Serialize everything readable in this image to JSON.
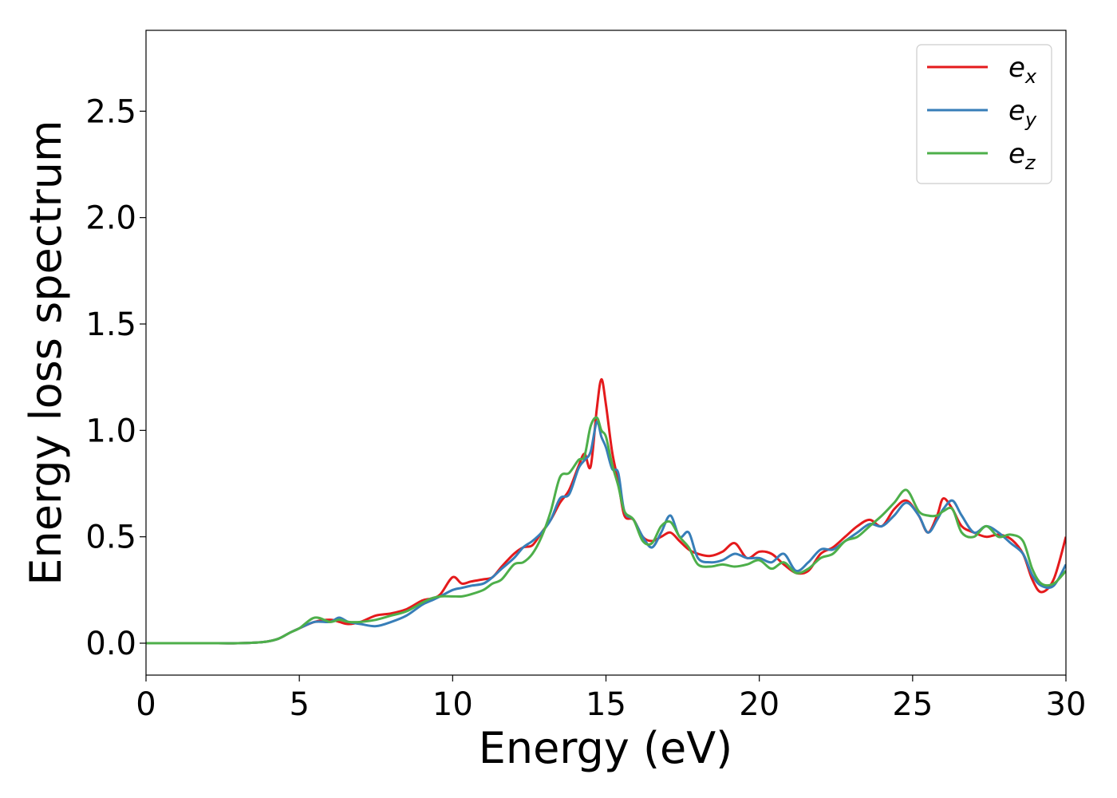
{
  "chart_data": {
    "type": "line",
    "title": "",
    "xlabel": "Energy (eV)",
    "ylabel": "Energy loss spectrum",
    "xlim": [
      0,
      30
    ],
    "ylim": [
      -0.15,
      2.88
    ],
    "xticks": [
      0,
      5,
      10,
      15,
      20,
      25,
      30
    ],
    "xtick_labels": [
      "0",
      "5",
      "10",
      "15",
      "20",
      "25",
      "30"
    ],
    "yticks": [
      0.0,
      0.5,
      1.0,
      1.5,
      2.0,
      2.5
    ],
    "ytick_labels": [
      "0.0",
      "0.5",
      "1.0",
      "1.5",
      "2.0",
      "2.5"
    ],
    "grid": false,
    "legend_position": "top-right",
    "legend": [
      {
        "base": "e",
        "sub": "x"
      },
      {
        "base": "e",
        "sub": "y"
      },
      {
        "base": "e",
        "sub": "z"
      }
    ],
    "series": [
      {
        "name": "e_x",
        "color": "#e41a1c",
        "points": [
          [
            0,
            0.0
          ],
          [
            1,
            0.0
          ],
          [
            2,
            0.0
          ],
          [
            3,
            0.0
          ],
          [
            3.8,
            0.005
          ],
          [
            4.3,
            0.02
          ],
          [
            4.7,
            0.05
          ],
          [
            5.0,
            0.07
          ],
          [
            5.5,
            0.1
          ],
          [
            6.0,
            0.11
          ],
          [
            6.3,
            0.1
          ],
          [
            6.6,
            0.09
          ],
          [
            7.0,
            0.1
          ],
          [
            7.5,
            0.13
          ],
          [
            8.0,
            0.14
          ],
          [
            8.5,
            0.16
          ],
          [
            9.0,
            0.2
          ],
          [
            9.3,
            0.21
          ],
          [
            9.6,
            0.23
          ],
          [
            10.0,
            0.31
          ],
          [
            10.3,
            0.28
          ],
          [
            10.6,
            0.29
          ],
          [
            11.0,
            0.3
          ],
          [
            11.3,
            0.31
          ],
          [
            11.6,
            0.36
          ],
          [
            12.0,
            0.42
          ],
          [
            12.3,
            0.45
          ],
          [
            12.6,
            0.46
          ],
          [
            12.9,
            0.52
          ],
          [
            13.2,
            0.58
          ],
          [
            13.5,
            0.66
          ],
          [
            13.8,
            0.72
          ],
          [
            14.1,
            0.83
          ],
          [
            14.3,
            0.89
          ],
          [
            14.5,
            0.83
          ],
          [
            14.7,
            1.1
          ],
          [
            14.85,
            1.24
          ],
          [
            15.0,
            1.12
          ],
          [
            15.2,
            0.9
          ],
          [
            15.4,
            0.76
          ],
          [
            15.6,
            0.6
          ],
          [
            15.9,
            0.58
          ],
          [
            16.2,
            0.5
          ],
          [
            16.5,
            0.48
          ],
          [
            16.8,
            0.5
          ],
          [
            17.1,
            0.52
          ],
          [
            17.4,
            0.48
          ],
          [
            17.7,
            0.44
          ],
          [
            18.0,
            0.42
          ],
          [
            18.4,
            0.41
          ],
          [
            18.8,
            0.43
          ],
          [
            19.2,
            0.47
          ],
          [
            19.6,
            0.4
          ],
          [
            20.0,
            0.43
          ],
          [
            20.4,
            0.42
          ],
          [
            20.8,
            0.37
          ],
          [
            21.2,
            0.33
          ],
          [
            21.6,
            0.34
          ],
          [
            22.0,
            0.42
          ],
          [
            22.4,
            0.45
          ],
          [
            22.8,
            0.5
          ],
          [
            23.2,
            0.55
          ],
          [
            23.6,
            0.58
          ],
          [
            24.0,
            0.55
          ],
          [
            24.4,
            0.63
          ],
          [
            24.8,
            0.67
          ],
          [
            25.2,
            0.6
          ],
          [
            25.5,
            0.52
          ],
          [
            25.8,
            0.6
          ],
          [
            26.0,
            0.68
          ],
          [
            26.3,
            0.63
          ],
          [
            26.6,
            0.55
          ],
          [
            27.0,
            0.52
          ],
          [
            27.4,
            0.5
          ],
          [
            27.8,
            0.51
          ],
          [
            28.2,
            0.49
          ],
          [
            28.6,
            0.42
          ],
          [
            28.9,
            0.3
          ],
          [
            29.2,
            0.24
          ],
          [
            29.6,
            0.3
          ],
          [
            30.0,
            0.5
          ]
        ]
      },
      {
        "name": "e_y",
        "color": "#377eb8",
        "points": [
          [
            0,
            0.0
          ],
          [
            1,
            0.0
          ],
          [
            2,
            0.0
          ],
          [
            3,
            0.0
          ],
          [
            3.8,
            0.005
          ],
          [
            4.3,
            0.02
          ],
          [
            4.7,
            0.05
          ],
          [
            5.0,
            0.07
          ],
          [
            5.5,
            0.1
          ],
          [
            6.0,
            0.1
          ],
          [
            6.3,
            0.12
          ],
          [
            6.6,
            0.1
          ],
          [
            7.0,
            0.09
          ],
          [
            7.5,
            0.08
          ],
          [
            8.0,
            0.1
          ],
          [
            8.5,
            0.13
          ],
          [
            9.0,
            0.18
          ],
          [
            9.3,
            0.2
          ],
          [
            9.6,
            0.22
          ],
          [
            10.0,
            0.25
          ],
          [
            10.3,
            0.26
          ],
          [
            10.6,
            0.27
          ],
          [
            11.0,
            0.28
          ],
          [
            11.3,
            0.31
          ],
          [
            11.6,
            0.35
          ],
          [
            12.0,
            0.4
          ],
          [
            12.3,
            0.45
          ],
          [
            12.6,
            0.48
          ],
          [
            12.9,
            0.52
          ],
          [
            13.2,
            0.58
          ],
          [
            13.5,
            0.68
          ],
          [
            13.8,
            0.7
          ],
          [
            14.1,
            0.82
          ],
          [
            14.3,
            0.86
          ],
          [
            14.5,
            0.9
          ],
          [
            14.7,
            1.04
          ],
          [
            14.85,
            0.97
          ],
          [
            15.0,
            0.92
          ],
          [
            15.2,
            0.82
          ],
          [
            15.4,
            0.8
          ],
          [
            15.6,
            0.62
          ],
          [
            15.9,
            0.58
          ],
          [
            16.2,
            0.5
          ],
          [
            16.5,
            0.45
          ],
          [
            16.8,
            0.52
          ],
          [
            17.1,
            0.6
          ],
          [
            17.4,
            0.5
          ],
          [
            17.7,
            0.52
          ],
          [
            18.0,
            0.4
          ],
          [
            18.4,
            0.38
          ],
          [
            18.8,
            0.39
          ],
          [
            19.2,
            0.42
          ],
          [
            19.6,
            0.4
          ],
          [
            20.0,
            0.4
          ],
          [
            20.4,
            0.38
          ],
          [
            20.8,
            0.42
          ],
          [
            21.2,
            0.34
          ],
          [
            21.6,
            0.38
          ],
          [
            22.0,
            0.44
          ],
          [
            22.4,
            0.44
          ],
          [
            22.8,
            0.48
          ],
          [
            23.2,
            0.52
          ],
          [
            23.6,
            0.56
          ],
          [
            24.0,
            0.55
          ],
          [
            24.4,
            0.6
          ],
          [
            24.8,
            0.66
          ],
          [
            25.2,
            0.6
          ],
          [
            25.5,
            0.52
          ],
          [
            25.8,
            0.58
          ],
          [
            26.0,
            0.63
          ],
          [
            26.3,
            0.67
          ],
          [
            26.6,
            0.6
          ],
          [
            27.0,
            0.52
          ],
          [
            27.4,
            0.55
          ],
          [
            27.8,
            0.52
          ],
          [
            28.2,
            0.47
          ],
          [
            28.6,
            0.42
          ],
          [
            28.9,
            0.32
          ],
          [
            29.2,
            0.27
          ],
          [
            29.6,
            0.27
          ],
          [
            30.0,
            0.37
          ]
        ]
      },
      {
        "name": "e_z",
        "color": "#4daf4a",
        "points": [
          [
            0,
            0.0
          ],
          [
            1,
            0.0
          ],
          [
            2,
            0.0
          ],
          [
            3,
            0.0
          ],
          [
            3.8,
            0.005
          ],
          [
            4.3,
            0.02
          ],
          [
            4.7,
            0.05
          ],
          [
            5.0,
            0.07
          ],
          [
            5.5,
            0.12
          ],
          [
            6.0,
            0.1
          ],
          [
            6.3,
            0.11
          ],
          [
            6.6,
            0.1
          ],
          [
            7.0,
            0.1
          ],
          [
            7.5,
            0.11
          ],
          [
            8.0,
            0.13
          ],
          [
            8.5,
            0.15
          ],
          [
            9.0,
            0.19
          ],
          [
            9.3,
            0.21
          ],
          [
            9.6,
            0.22
          ],
          [
            10.0,
            0.22
          ],
          [
            10.3,
            0.22
          ],
          [
            10.6,
            0.23
          ],
          [
            11.0,
            0.25
          ],
          [
            11.3,
            0.28
          ],
          [
            11.6,
            0.3
          ],
          [
            12.0,
            0.37
          ],
          [
            12.3,
            0.38
          ],
          [
            12.6,
            0.42
          ],
          [
            12.9,
            0.5
          ],
          [
            13.2,
            0.62
          ],
          [
            13.5,
            0.78
          ],
          [
            13.8,
            0.8
          ],
          [
            14.1,
            0.86
          ],
          [
            14.3,
            0.88
          ],
          [
            14.5,
            1.02
          ],
          [
            14.7,
            1.06
          ],
          [
            14.85,
            1.0
          ],
          [
            15.0,
            0.97
          ],
          [
            15.2,
            0.84
          ],
          [
            15.4,
            0.74
          ],
          [
            15.6,
            0.62
          ],
          [
            15.9,
            0.58
          ],
          [
            16.2,
            0.48
          ],
          [
            16.5,
            0.47
          ],
          [
            16.8,
            0.55
          ],
          [
            17.1,
            0.57
          ],
          [
            17.4,
            0.5
          ],
          [
            17.7,
            0.45
          ],
          [
            18.0,
            0.37
          ],
          [
            18.4,
            0.36
          ],
          [
            18.8,
            0.37
          ],
          [
            19.2,
            0.36
          ],
          [
            19.6,
            0.37
          ],
          [
            20.0,
            0.39
          ],
          [
            20.4,
            0.35
          ],
          [
            20.8,
            0.38
          ],
          [
            21.2,
            0.33
          ],
          [
            21.6,
            0.35
          ],
          [
            22.0,
            0.4
          ],
          [
            22.4,
            0.42
          ],
          [
            22.8,
            0.48
          ],
          [
            23.2,
            0.5
          ],
          [
            23.6,
            0.55
          ],
          [
            24.0,
            0.6
          ],
          [
            24.4,
            0.66
          ],
          [
            24.8,
            0.72
          ],
          [
            25.2,
            0.62
          ],
          [
            25.5,
            0.6
          ],
          [
            25.8,
            0.6
          ],
          [
            26.0,
            0.62
          ],
          [
            26.3,
            0.63
          ],
          [
            26.6,
            0.52
          ],
          [
            27.0,
            0.5
          ],
          [
            27.4,
            0.55
          ],
          [
            27.8,
            0.5
          ],
          [
            28.2,
            0.51
          ],
          [
            28.6,
            0.48
          ],
          [
            28.9,
            0.35
          ],
          [
            29.2,
            0.28
          ],
          [
            29.6,
            0.28
          ],
          [
            30.0,
            0.34
          ]
        ]
      }
    ]
  }
}
